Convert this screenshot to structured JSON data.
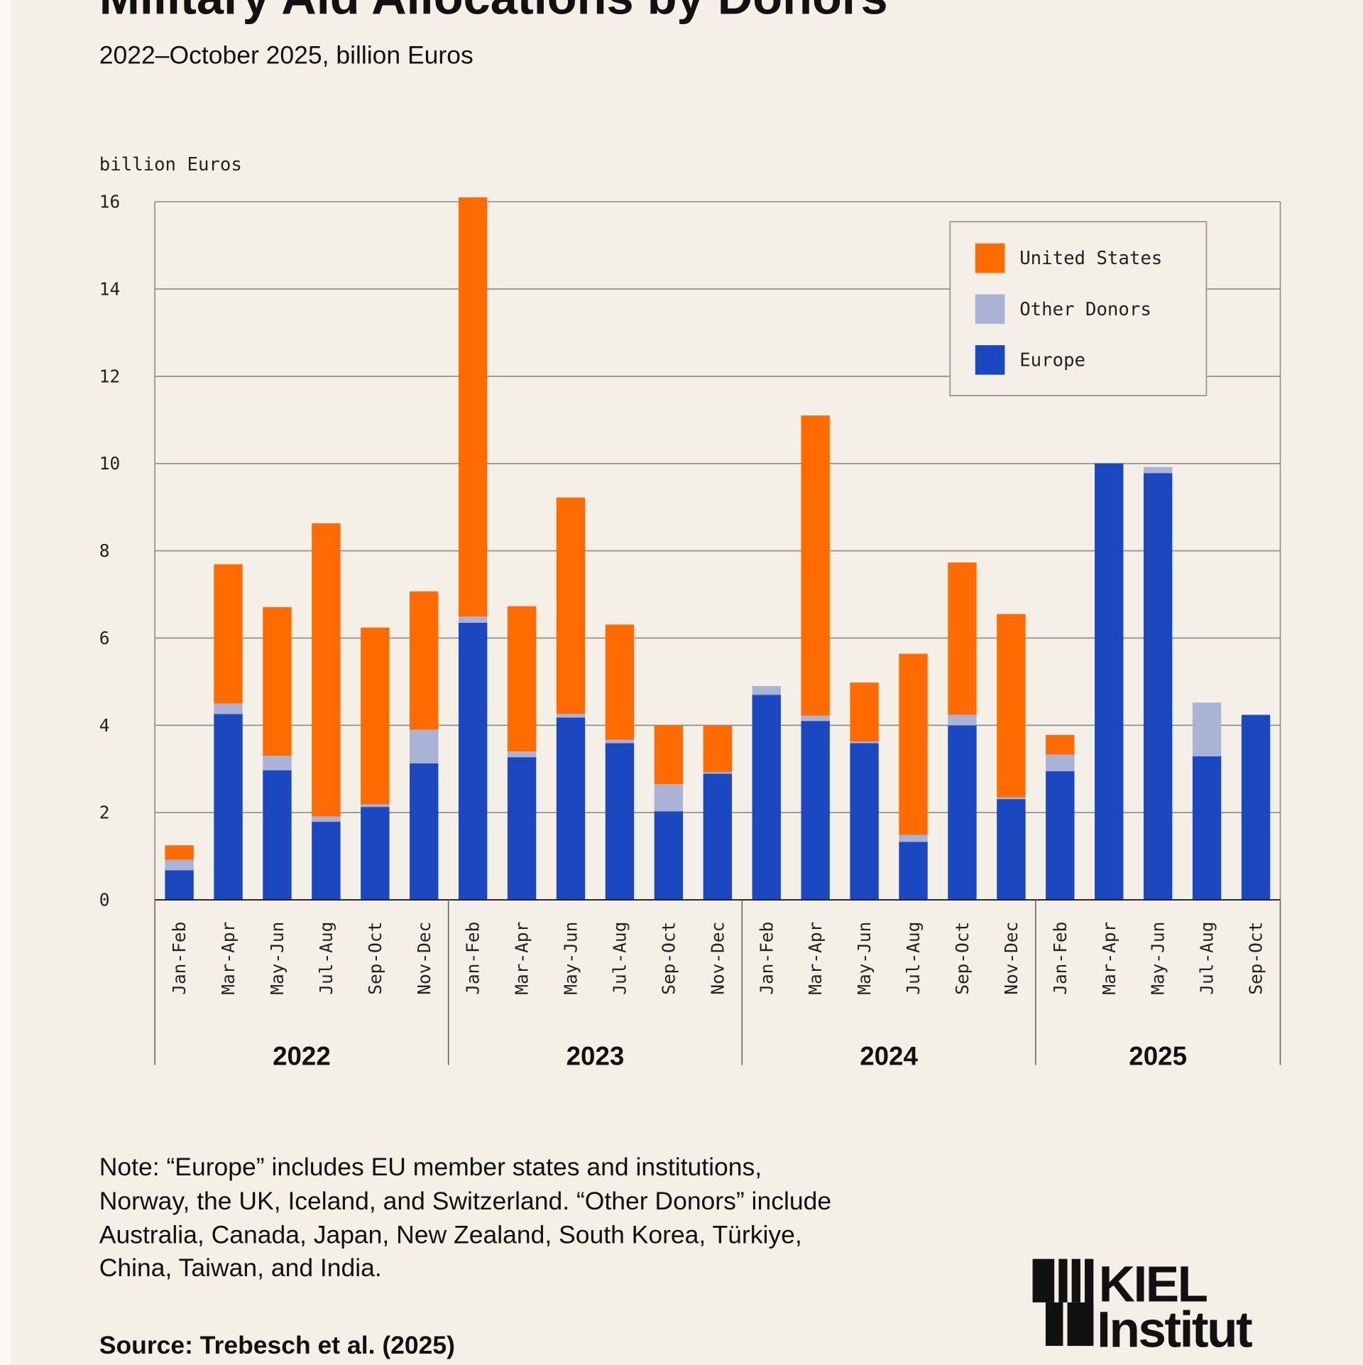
{
  "title": "Military Aid Allocations by Donors",
  "subtitle": "2022–October 2025, billion Euros",
  "note": [
    "Note: “Europe” includes EU member states and institutions,",
    "Norway, the UK, Iceland, and Switzerland. “Other Donors” include",
    "Australia, Canada, Japan, New Zealand, South Korea, Türkiye,",
    "China, Taiwan, and India."
  ],
  "source": "Source: Trebesch et al. (2025)",
  "logo": {
    "line1": "KIEL",
    "line2": "Institut"
  },
  "colors": {
    "United States": "#ff6b00",
    "Other Donors": "#aab3d6",
    "Europe": "#1b48c0",
    "background": "#f4f0e7"
  },
  "chart_data": {
    "type": "bar",
    "stacked": true,
    "ylabel": "billion Euros",
    "ylim": [
      0,
      16
    ],
    "yticks": [
      "0",
      "2",
      "4",
      "6",
      "8",
      "10",
      "12",
      "14",
      "16"
    ],
    "grid": true,
    "legend_position": "top-right",
    "legend": [
      "United States",
      "Other Donors",
      "Europe"
    ],
    "years": [
      {
        "label": "2022",
        "count": 6
      },
      {
        "label": "2023",
        "count": 6
      },
      {
        "label": "2024",
        "count": 6
      },
      {
        "label": "2025",
        "count": 5
      }
    ],
    "categories": [
      "Jan-Feb",
      "Mar-Apr",
      "May-Jun",
      "Jul-Aug",
      "Sep-Oct",
      "Nov-Dec",
      "Jan-Feb",
      "Mar-Apr",
      "May-Jun",
      "Jul-Aug",
      "Sep-Oct",
      "Nov-Dec",
      "Jan-Feb",
      "Mar-Apr",
      "May-Jun",
      "Jul-Aug",
      "Sep-Oct",
      "Nov-Dec",
      "Jan-Feb",
      "Mar-Apr",
      "May-Jun",
      "Jul-Aug",
      "Sep-Oct"
    ],
    "series": [
      {
        "name": "Europe",
        "values": [
          0.68,
          4.26,
          2.97,
          1.79,
          2.13,
          3.13,
          6.35,
          3.27,
          4.18,
          3.59,
          2.03,
          2.89,
          4.7,
          4.1,
          3.59,
          1.33,
          4.0,
          2.31,
          2.95,
          10.0,
          9.78,
          3.29,
          4.24
        ]
      },
      {
        "name": "Other Donors",
        "values": [
          0.24,
          0.24,
          0.33,
          0.12,
          0.06,
          0.77,
          0.14,
          0.13,
          0.08,
          0.08,
          0.62,
          0.04,
          0.2,
          0.12,
          0.04,
          0.16,
          0.24,
          0.04,
          0.38,
          0.0,
          0.14,
          1.23,
          0.0
        ]
      },
      {
        "name": "United States",
        "values": [
          0.33,
          3.19,
          3.41,
          6.72,
          4.05,
          3.17,
          9.61,
          3.33,
          4.96,
          2.64,
          1.35,
          1.07,
          0.0,
          6.88,
          1.35,
          4.15,
          3.49,
          4.2,
          0.45,
          0.0,
          0.0,
          0.0,
          0.0
        ]
      }
    ]
  }
}
